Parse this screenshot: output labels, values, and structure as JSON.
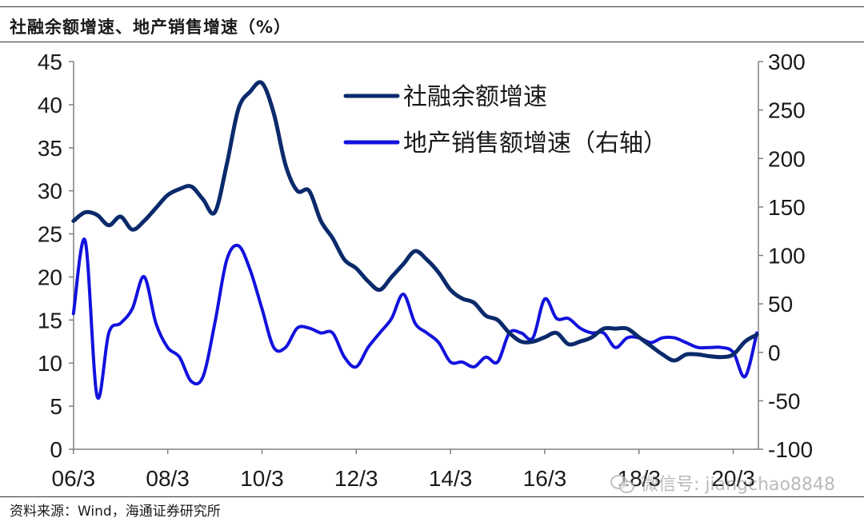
{
  "header": {
    "title": "社融余额增速、地产销售增速（%）"
  },
  "footer": {
    "source": "资料来源：Wind，海通证券研究所"
  },
  "watermark": {
    "text": "微信号: jiangchao8848"
  },
  "colors": {
    "series1": "#0a2a6b",
    "series2": "#1212dd",
    "axis": "#808080"
  },
  "chart_data": {
    "type": "line",
    "x_ticks": [
      "06/3",
      "08/3",
      "10/3",
      "12/3",
      "14/3",
      "16/3",
      "18/3",
      "20/3"
    ],
    "left_axis": {
      "ylim": [
        0,
        45
      ],
      "ticks": [
        "0",
        "5",
        "10",
        "15",
        "20",
        "25",
        "30",
        "35",
        "40",
        "45"
      ]
    },
    "right_axis": {
      "ylim": [
        -100,
        300
      ],
      "ticks": [
        "-100",
        "-50",
        "0",
        "50",
        "100",
        "150",
        "200",
        "250",
        "300"
      ]
    },
    "legend_position": "top-center",
    "grid": false,
    "series": [
      {
        "name": "社融余额增速",
        "axis": "left",
        "x": [
          "2006-03",
          "2006-06",
          "2006-09",
          "2006-12",
          "2007-03",
          "2007-06",
          "2007-09",
          "2007-12",
          "2008-03",
          "2008-06",
          "2008-09",
          "2008-12",
          "2009-03",
          "2009-06",
          "2009-09",
          "2009-12",
          "2010-03",
          "2010-06",
          "2010-09",
          "2010-12",
          "2011-03",
          "2011-06",
          "2011-09",
          "2011-12",
          "2012-03",
          "2012-06",
          "2012-09",
          "2012-12",
          "2013-03",
          "2013-06",
          "2013-09",
          "2013-12",
          "2014-03",
          "2014-06",
          "2014-09",
          "2014-12",
          "2015-03",
          "2015-06",
          "2015-09",
          "2015-12",
          "2016-03",
          "2016-06",
          "2016-09",
          "2016-12",
          "2017-03",
          "2017-06",
          "2017-09",
          "2017-12",
          "2018-03",
          "2018-06",
          "2018-09",
          "2018-12",
          "2019-03",
          "2019-06",
          "2019-09",
          "2019-12",
          "2020-03",
          "2020-06",
          "2020-09"
        ],
        "values": [
          26.5,
          27.5,
          27.2,
          26.0,
          27.0,
          25.5,
          26.5,
          28.0,
          29.5,
          30.2,
          30.5,
          29.0,
          27.5,
          33.0,
          39.5,
          41.5,
          42.5,
          39.0,
          33.0,
          30.0,
          30.0,
          26.5,
          24.5,
          22.0,
          21.0,
          19.5,
          18.5,
          20.0,
          21.5,
          23.0,
          22.0,
          20.5,
          18.5,
          17.5,
          17.0,
          15.5,
          15.0,
          13.5,
          12.5,
          12.5,
          13.0,
          13.5,
          12.2,
          12.5,
          13.0,
          14.0,
          14.0,
          14.0,
          13.0,
          12.0,
          11.0,
          10.3,
          11.0,
          11.0,
          10.8,
          10.7,
          11.0,
          12.5,
          13.3
        ]
      },
      {
        "name": "地产销售额增速（右轴）",
        "axis": "right",
        "x": [
          "2006-03",
          "2006-06",
          "2006-09",
          "2006-12",
          "2007-03",
          "2007-06",
          "2007-09",
          "2007-12",
          "2008-03",
          "2008-06",
          "2008-09",
          "2008-12",
          "2009-03",
          "2009-06",
          "2009-09",
          "2009-12",
          "2010-03",
          "2010-06",
          "2010-09",
          "2010-12",
          "2011-03",
          "2011-06",
          "2011-09",
          "2011-12",
          "2012-03",
          "2012-06",
          "2012-09",
          "2012-12",
          "2013-03",
          "2013-06",
          "2013-09",
          "2013-12",
          "2014-03",
          "2014-06",
          "2014-09",
          "2014-12",
          "2015-03",
          "2015-06",
          "2015-09",
          "2015-12",
          "2016-03",
          "2016-06",
          "2016-09",
          "2016-12",
          "2017-03",
          "2017-06",
          "2017-09",
          "2017-12",
          "2018-03",
          "2018-06",
          "2018-09",
          "2018-12",
          "2019-03",
          "2019-06",
          "2019-09",
          "2019-12",
          "2020-03",
          "2020-06",
          "2020-09"
        ],
        "values": [
          40,
          115,
          -45,
          20,
          30,
          45,
          78,
          30,
          5,
          -5,
          -30,
          -25,
          30,
          95,
          110,
          85,
          45,
          5,
          5,
          25,
          25,
          20,
          20,
          -5,
          -15,
          5,
          20,
          35,
          60,
          30,
          20,
          10,
          -10,
          -10,
          -15,
          -5,
          -10,
          20,
          20,
          15,
          55,
          35,
          35,
          25,
          20,
          20,
          5,
          15,
          15,
          10,
          15,
          15,
          10,
          5,
          5,
          5,
          0,
          -25,
          20
        ]
      }
    ]
  }
}
